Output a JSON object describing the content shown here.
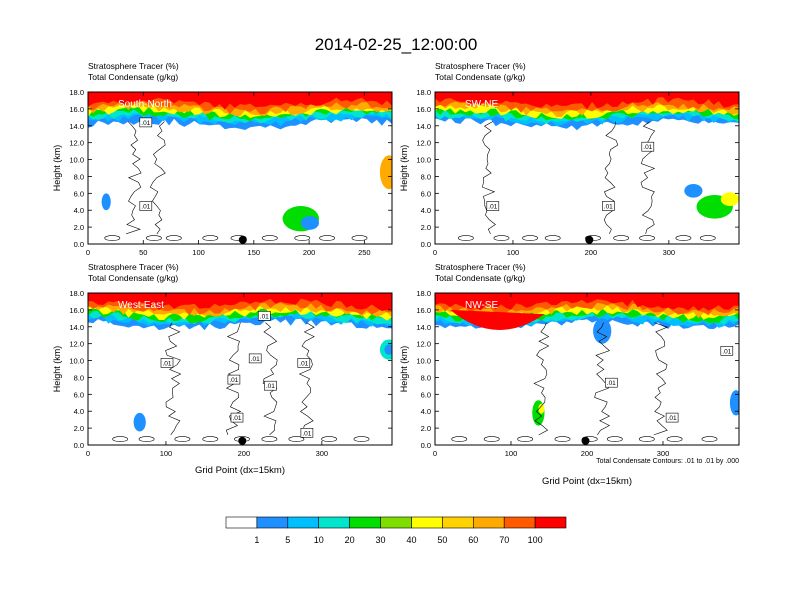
{
  "figure": {
    "title": "2014-02-25_12:00:00",
    "contour_info": "Total Condensate Contours: .01 to .01 by .000"
  },
  "colorbar": {
    "colors": [
      "#ffffff",
      "#1e90ff",
      "#00bfff",
      "#00e5cc",
      "#00dd00",
      "#7fdd00",
      "#ffff00",
      "#ffd200",
      "#ffaa00",
      "#ff5a00",
      "#ff0000"
    ],
    "tick_labels": [
      "1",
      "5",
      "10",
      "20",
      "30",
      "40",
      "50",
      "60",
      "70",
      "100"
    ]
  },
  "chart_data": [
    {
      "type": "heatmap",
      "panel": "South-North",
      "title_line1": "Stratosphere Tracer   (%)",
      "title_line2": "Total Condensate   (g/kg)",
      "ylabel": "Height (km)",
      "xlabel": "",
      "x_ticks": [
        0,
        50,
        100,
        150,
        200,
        250
      ],
      "y_ticks": [
        "0.0",
        "2.0",
        "4.0",
        "6.0",
        "8.0",
        "10.0",
        "12.0",
        "14.0",
        "16.0",
        "18.0"
      ],
      "xlim": [
        0,
        275
      ],
      "ylim": [
        0,
        18
      ],
      "contour_labels": [
        ".01",
        ".01"
      ],
      "marker_x": 140
    },
    {
      "type": "heatmap",
      "panel": "SW-NE",
      "title_line1": "Stratosphere Tracer   (%)",
      "title_line2": "Total Condensate   (g/kg)",
      "ylabel": "Height (km)",
      "xlabel": "",
      "x_ticks": [
        0,
        100,
        200,
        300
      ],
      "y_ticks": [
        "0.0",
        "2.0",
        "4.0",
        "6.0",
        "8.0",
        "10.0",
        "12.0",
        "14.0",
        "16.0",
        "18.0"
      ],
      "xlim": [
        0,
        390
      ],
      "ylim": [
        0,
        18
      ],
      "contour_labels": [
        ".01",
        ".01",
        ".01"
      ],
      "marker_x": 198
    },
    {
      "type": "heatmap",
      "panel": "West-East",
      "title_line1": "Stratosphere Tracer   (%)",
      "title_line2": "Total Condensate   (g/kg)",
      "ylabel": "Height (km)",
      "xlabel": "Grid Point (dx=15km)",
      "x_ticks": [
        0,
        100,
        200,
        300
      ],
      "y_ticks": [
        "0.0",
        "2.0",
        "4.0",
        "6.0",
        "8.0",
        "10.0",
        "12.0",
        "14.0",
        "16.0",
        "18.0"
      ],
      "xlim": [
        0,
        390
      ],
      "ylim": [
        0,
        18
      ],
      "contour_labels": [
        ".01",
        ".01",
        ".01",
        ".01",
        ".01",
        ".01",
        ".01",
        ".01"
      ],
      "marker_x": 198
    },
    {
      "type": "heatmap",
      "panel": "NW-SE",
      "title_line1": "Stratosphere Tracer   (%)",
      "title_line2": "Total Condensate   (g/kg)",
      "ylabel": "Height (km)",
      "xlabel": "Grid Point (dx=15km)",
      "x_ticks": [
        0,
        100,
        200,
        300
      ],
      "y_ticks": [
        "0.0",
        "2.0",
        "4.0",
        "6.0",
        "8.0",
        "10.0",
        "12.0",
        "14.0",
        "16.0",
        "18.0"
      ],
      "xlim": [
        0,
        400
      ],
      "ylim": [
        0,
        18
      ],
      "contour_labels": [
        ".01",
        ".01",
        ".01"
      ],
      "marker_x": 198
    }
  ]
}
